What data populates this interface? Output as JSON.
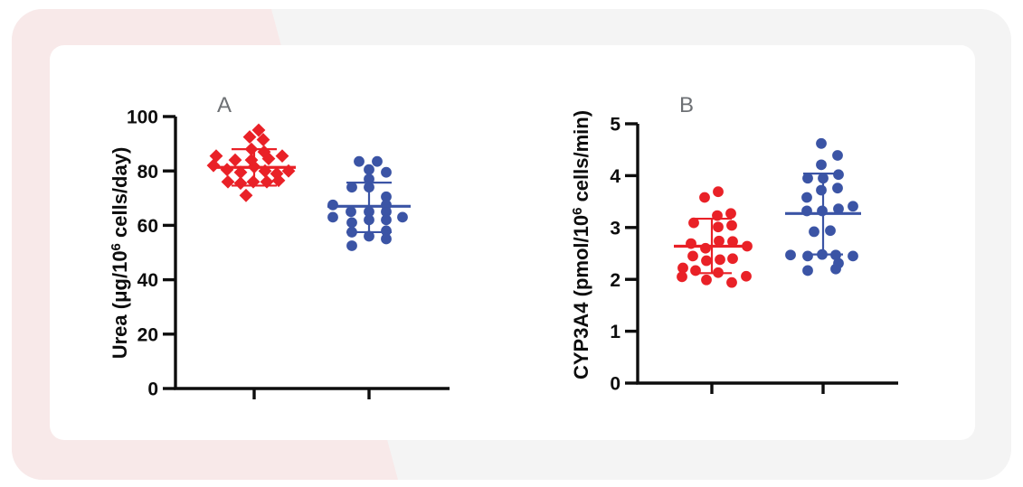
{
  "page": {
    "background_color": "#ffffff",
    "panel_background_color": "#f4f4f4",
    "accent_color": "#f8e9e9",
    "card_color": "#ffffff",
    "axis_color": "#0d0d0d",
    "panel_label_color": "#6d7074",
    "series_red": "#e92127",
    "series_blue": "#3b54a5"
  },
  "chart_data": [
    {
      "type": "scatter",
      "panel_label": "A",
      "title": "",
      "xlabel": "",
      "ylabel": "Urea (μg/10⁶ cells/day)",
      "ylim": [
        0,
        100
      ],
      "yticks": [
        0,
        20,
        40,
        60,
        80,
        100
      ],
      "grid": false,
      "legend": "none",
      "error_style": "mean_with_sd_bars",
      "groups": [
        {
          "name": "group-1-red",
          "marker": "diamond",
          "color": "#e92127",
          "mean": 81.3,
          "sd_low": 74.6,
          "sd_high": 88.0,
          "points": [
            [
              5,
              95
            ],
            [
              -5,
              92.5
            ],
            [
              10,
              91.5
            ],
            [
              -3,
              88
            ],
            [
              11,
              87
            ],
            [
              -42,
              85.5
            ],
            [
              -21,
              84
            ],
            [
              -3,
              84
            ],
            [
              16,
              84.5
            ],
            [
              31,
              85.5
            ],
            [
              -45,
              82
            ],
            [
              -30,
              80.5
            ],
            [
              -15,
              79.5
            ],
            [
              0,
              81.5
            ],
            [
              12,
              80
            ],
            [
              25,
              79
            ],
            [
              38,
              80
            ],
            [
              -29,
              76
            ],
            [
              -15,
              75.5
            ],
            [
              -1,
              76
            ],
            [
              14,
              76
            ],
            [
              27,
              76.5
            ],
            [
              -9,
              71
            ]
          ]
        },
        {
          "name": "group-2-blue",
          "marker": "circle",
          "color": "#3b54a5",
          "mean": 67.0,
          "sd_low": 57.5,
          "sd_high": 75.7,
          "points": [
            [
              -11,
              83.5
            ],
            [
              9,
              83.5
            ],
            [
              0,
              80.5
            ],
            [
              19,
              79.5
            ],
            [
              0,
              77
            ],
            [
              -19,
              74
            ],
            [
              0,
              74
            ],
            [
              19,
              70.5
            ],
            [
              -40,
              67.5
            ],
            [
              19,
              67.5
            ],
            [
              -20,
              65
            ],
            [
              0,
              65
            ],
            [
              19,
              65
            ],
            [
              37,
              63
            ],
            [
              -40,
              63
            ],
            [
              -19,
              61
            ],
            [
              0,
              62
            ],
            [
              19,
              62
            ],
            [
              -19,
              57.5
            ],
            [
              0,
              56
            ],
            [
              19,
              58
            ],
            [
              -19,
              52.5
            ],
            [
              19,
              55
            ]
          ]
        }
      ]
    },
    {
      "type": "scatter",
      "panel_label": "B",
      "title": "",
      "xlabel": "",
      "ylabel": "CYP3A4 (pmol/10⁶ cells/min)",
      "ylim": [
        0,
        5
      ],
      "yticks": [
        0,
        1,
        2,
        3,
        4,
        5
      ],
      "grid": false,
      "legend": "none",
      "error_style": "mean_with_sd_bars",
      "groups": [
        {
          "name": "group-1-red",
          "marker": "circle",
          "color": "#e92127",
          "mean": 2.64,
          "sd_low": 2.12,
          "sd_high": 3.17,
          "points": [
            [
              -8,
              3.58
            ],
            [
              7,
              3.69
            ],
            [
              -20,
              3.09
            ],
            [
              6,
              3.23
            ],
            [
              21,
              3.27
            ],
            [
              7,
              3.01
            ],
            [
              22,
              3.04
            ],
            [
              -23,
              2.69
            ],
            [
              -7,
              2.6
            ],
            [
              8,
              2.74
            ],
            [
              23,
              2.73
            ],
            [
              39,
              2.64
            ],
            [
              -21,
              2.45
            ],
            [
              -6,
              2.36
            ],
            [
              9,
              2.38
            ],
            [
              23,
              2.4
            ],
            [
              -32,
              2.22
            ],
            [
              -18,
              2.17
            ],
            [
              7,
              2.13
            ],
            [
              -33,
              2.05
            ],
            [
              -6,
              1.99
            ],
            [
              22,
              1.94
            ],
            [
              38,
              2.06
            ]
          ]
        },
        {
          "name": "group-2-blue",
          "marker": "circle",
          "color": "#3b54a5",
          "mean": 3.27,
          "sd_low": 2.48,
          "sd_high": 4.04,
          "points": [
            [
              -2,
              4.62
            ],
            [
              16,
              4.39
            ],
            [
              -2,
              4.21
            ],
            [
              -17,
              3.95
            ],
            [
              0,
              3.95
            ],
            [
              17,
              4.02
            ],
            [
              -2,
              3.72
            ],
            [
              16,
              3.76
            ],
            [
              -18,
              3.58
            ],
            [
              -18,
              3.32
            ],
            [
              -1,
              3.32
            ],
            [
              17,
              3.36
            ],
            [
              33,
              3.41
            ],
            [
              -10,
              2.92
            ],
            [
              8,
              2.94
            ],
            [
              -36,
              2.47
            ],
            [
              -17,
              2.45
            ],
            [
              -1,
              2.48
            ],
            [
              14,
              2.47
            ],
            [
              17,
              2.31
            ],
            [
              33,
              2.45
            ],
            [
              -17,
              2.17
            ],
            [
              14,
              2.2
            ]
          ]
        }
      ]
    }
  ]
}
